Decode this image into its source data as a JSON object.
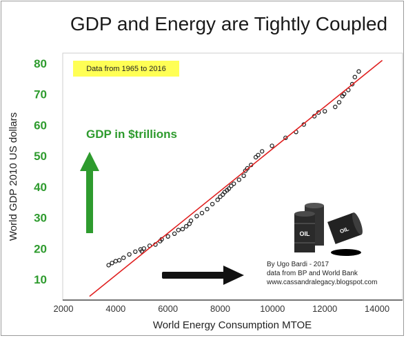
{
  "chart_data": {
    "type": "scatter",
    "title": "GDP and Energy are Tightly Coupled",
    "xlabel": "World Energy Consumption MTOE",
    "ylabel": "World GDP 2010 US dollars",
    "xlim": [
      2000,
      14500
    ],
    "ylim": [
      3,
      82
    ],
    "xticks": [
      2000,
      4000,
      6000,
      8000,
      10000,
      12000,
      14000
    ],
    "yticks": [
      10,
      20,
      30,
      40,
      50,
      60,
      70,
      80
    ],
    "grid": false,
    "note": "Data from 1965 to 2016",
    "gdp_label": "GDP in $trillions",
    "credits": [
      "By Ugo Bardi - 2017",
      "data from BP and World Bank",
      "www.cassandralegacy.blogspot.com"
    ],
    "fit_line": {
      "x": [
        3000,
        14200
      ],
      "y": [
        4.5,
        81
      ]
    },
    "points": [
      [
        3730,
        14.6
      ],
      [
        3860,
        15.3
      ],
      [
        4000,
        15.9
      ],
      [
        4140,
        16.2
      ],
      [
        4300,
        17.0
      ],
      [
        4520,
        18.1
      ],
      [
        4750,
        19.0
      ],
      [
        4950,
        19.7
      ],
      [
        5000,
        19.1
      ],
      [
        5080,
        20.0
      ],
      [
        5300,
        20.9
      ],
      [
        5520,
        21.3
      ],
      [
        5700,
        22.4
      ],
      [
        5760,
        23.0
      ],
      [
        6000,
        23.9
      ],
      [
        6250,
        24.8
      ],
      [
        6400,
        26.0
      ],
      [
        6560,
        26.3
      ],
      [
        6700,
        27.2
      ],
      [
        6820,
        28.0
      ],
      [
        6880,
        29.0
      ],
      [
        7100,
        30.5
      ],
      [
        7300,
        31.5
      ],
      [
        7500,
        32.8
      ],
      [
        7700,
        34.4
      ],
      [
        7900,
        35.8
      ],
      [
        8000,
        36.8
      ],
      [
        8100,
        37.5
      ],
      [
        8170,
        38.3
      ],
      [
        8260,
        38.9
      ],
      [
        8330,
        39.4
      ],
      [
        8420,
        40.3
      ],
      [
        8520,
        41.0
      ],
      [
        8720,
        42.3
      ],
      [
        8900,
        43.6
      ],
      [
        8960,
        45.2
      ],
      [
        9040,
        46.0
      ],
      [
        9180,
        47.1
      ],
      [
        9360,
        49.6
      ],
      [
        9450,
        50.3
      ],
      [
        9600,
        51.5
      ],
      [
        9980,
        53.3
      ],
      [
        10500,
        55.9
      ],
      [
        10900,
        57.8
      ],
      [
        11200,
        60.2
      ],
      [
        11600,
        62.9
      ],
      [
        11760,
        64.1
      ],
      [
        12000,
        64.5
      ],
      [
        12400,
        65.9
      ],
      [
        12550,
        67.4
      ],
      [
        12680,
        69.4
      ],
      [
        12740,
        70.1
      ],
      [
        12900,
        71.4
      ],
      [
        13050,
        73.3
      ],
      [
        13150,
        75.6
      ],
      [
        13300,
        77.4
      ]
    ],
    "colors": {
      "points": "#1a1a1a",
      "fit": "#e02020",
      "tick_y": "#2e9b2e",
      "note_bg": "#ffff55",
      "up_arrow": "#2e9b2e",
      "right_arrow": "#111111"
    }
  }
}
